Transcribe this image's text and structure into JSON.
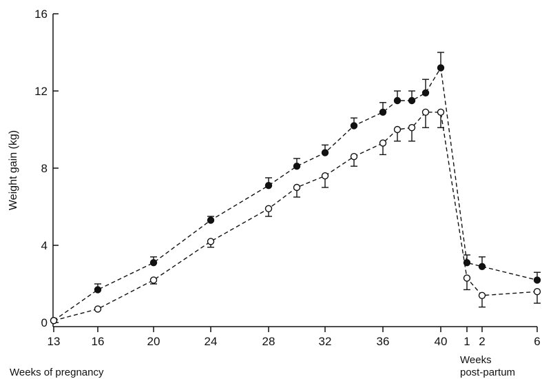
{
  "chart_data": {
    "type": "line",
    "title": "",
    "ylabel": "Weight gain (kg)",
    "ylim": [
      0,
      16
    ],
    "yticks": [
      0,
      4,
      8,
      12,
      16
    ],
    "xlabel_pregnancy": "Weeks of pregnancy",
    "xlabel_postpartum_line1": "Weeks",
    "xlabel_postpartum_line2": "post-partum",
    "xticks": [
      {
        "label": "13",
        "key": "13"
      },
      {
        "label": "16",
        "key": "16"
      },
      {
        "label": "20",
        "key": "20"
      },
      {
        "label": "24",
        "key": "24"
      },
      {
        "label": "28",
        "key": "28"
      },
      {
        "label": "32",
        "key": "32"
      },
      {
        "label": "36",
        "key": "36"
      },
      {
        "label": "40",
        "key": "40"
      },
      {
        "label": "1",
        "key": "pp1"
      },
      {
        "label": "2",
        "key": "pp2"
      },
      {
        "label": "6",
        "key": "pp6"
      }
    ],
    "series": [
      {
        "marker": "filled",
        "points": [
          {
            "x": "13",
            "y": 0.1,
            "err": 0
          },
          {
            "x": "16",
            "y": 1.7,
            "err": 0.3
          },
          {
            "x": "20",
            "y": 3.1,
            "err": 0.3
          },
          {
            "x": "24",
            "y": 5.3,
            "err": 0.2
          },
          {
            "x": "28",
            "y": 7.1,
            "err": 0.4
          },
          {
            "x": "30",
            "y": 8.1,
            "err": 0.4
          },
          {
            "x": "32",
            "y": 8.8,
            "err": 0.4
          },
          {
            "x": "34",
            "y": 10.2,
            "err": 0.4
          },
          {
            "x": "36",
            "y": 10.9,
            "err": 0.5
          },
          {
            "x": "37",
            "y": 11.5,
            "err": 0.5
          },
          {
            "x": "38",
            "y": 11.5,
            "err": 0.5
          },
          {
            "x": "39",
            "y": 11.9,
            "err": 0.7
          },
          {
            "x": "40",
            "y": 13.2,
            "err": 0.8
          },
          {
            "x": "pp1",
            "y": 3.1,
            "err": 0.4
          },
          {
            "x": "pp2",
            "y": 2.9,
            "err": 0.5
          },
          {
            "x": "pp6",
            "y": 2.2,
            "err": 0.4
          }
        ]
      },
      {
        "marker": "open",
        "points": [
          {
            "x": "13",
            "y": 0.1,
            "err": 0
          },
          {
            "x": "16",
            "y": 0.7,
            "err": 0
          },
          {
            "x": "20",
            "y": 2.2,
            "err": 0.2
          },
          {
            "x": "24",
            "y": 4.2,
            "err": 0.3
          },
          {
            "x": "28",
            "y": 5.9,
            "err": 0.4
          },
          {
            "x": "30",
            "y": 7.0,
            "err": 0.5
          },
          {
            "x": "32",
            "y": 7.6,
            "err": 0.6
          },
          {
            "x": "34",
            "y": 8.6,
            "err": 0.5
          },
          {
            "x": "36",
            "y": 9.3,
            "err": 0.6
          },
          {
            "x": "37",
            "y": 10.0,
            "err": 0.6
          },
          {
            "x": "38",
            "y": 10.1,
            "err": 0.7
          },
          {
            "x": "39",
            "y": 10.9,
            "err": 0.8
          },
          {
            "x": "40",
            "y": 10.9,
            "err": 0.8
          },
          {
            "x": "pp1",
            "y": 2.3,
            "err": 0.6
          },
          {
            "x": "pp2",
            "y": 1.4,
            "err": 0.6
          },
          {
            "x": "pp6",
            "y": 1.6,
            "err": 0.6
          }
        ]
      }
    ],
    "grid": false,
    "legend": "none",
    "line_style": "dashed",
    "colors": {
      "ink": "#111111",
      "background": "#ffffff"
    }
  }
}
